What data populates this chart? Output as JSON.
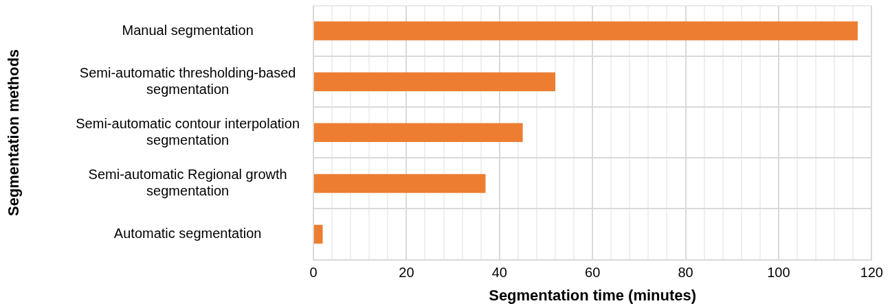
{
  "chart_data": {
    "type": "bar",
    "orientation": "horizontal",
    "xlabel": "Segmentation time (minutes)",
    "ylabel": "Segmentation methods",
    "categories": [
      "Manual segmentation",
      "Semi-automatic thresholding-based segmentation",
      "Semi-automatic contour interpolation segmentation",
      "Semi-automatic Regional growth segmentation",
      "Automatic segmentation"
    ],
    "values": [
      117,
      52,
      45,
      37,
      2
    ],
    "color": "#ed7d31",
    "xlim": [
      0,
      120
    ],
    "xticks": [
      0,
      {
        "value": 4,
        "label": null
      },
      {
        "value": 8,
        "label": null
      },
      {
        "value": 12,
        "label": null
      },
      {
        "value": 16,
        "label": null
      },
      20,
      {
        "value": 24,
        "label": null
      },
      {
        "value": 28,
        "label": null
      },
      {
        "value": 32,
        "label": null
      },
      {
        "value": 36,
        "label": null
      },
      40,
      {
        "value": 44,
        "label": null
      },
      {
        "value": 48,
        "label": null
      },
      {
        "value": 52,
        "label": null
      },
      {
        "value": 56,
        "label": null
      },
      60,
      {
        "value": 64,
        "label": null
      },
      {
        "value": 68,
        "label": null
      },
      {
        "value": 72,
        "label": null
      },
      {
        "value": 76,
        "label": null
      },
      80,
      {
        "value": 84,
        "label": null
      },
      {
        "value": 88,
        "label": null
      },
      {
        "value": 92,
        "label": null
      },
      {
        "value": 96,
        "label": null
      },
      100,
      {
        "value": 104,
        "label": null
      },
      {
        "value": 108,
        "label": null
      },
      {
        "value": 112,
        "label": null
      },
      {
        "value": 116,
        "label": null
      },
      120
    ],
    "grid": true
  }
}
